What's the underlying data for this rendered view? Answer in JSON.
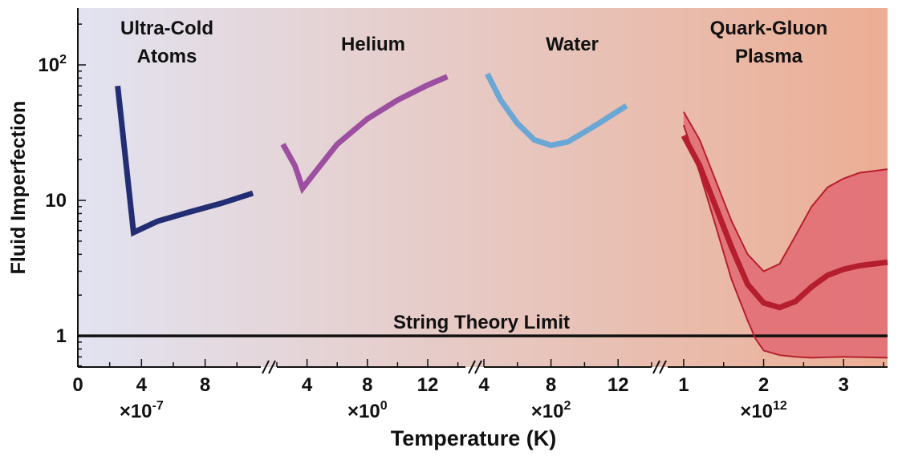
{
  "chart_data": {
    "type": "line",
    "xlabel": "Temperature (K)",
    "ylabel": "Fluid Imperfection",
    "y_scale": "log",
    "y_ticks": [
      {
        "value": 1,
        "label": "1",
        "sup": ""
      },
      {
        "value": 10,
        "label": "10",
        "sup": ""
      },
      {
        "value": 100,
        "label": "10",
        "sup": "2"
      }
    ],
    "limit": {
      "label": "String Theory Limit",
      "value": 1
    },
    "colors": {
      "bg_left": "#e2e3f1",
      "bg_right": "#ecae94",
      "atoms": "#232d73",
      "helium": "#9c4fa0",
      "water": "#6aa7d5",
      "qgp_line": "#b51f2d",
      "qgp_band": "#e26a73",
      "limit": "#111111"
    },
    "segments": [
      {
        "name": "Ultra-Cold Atoms",
        "title_lines": [
          "Ultra-Cold",
          "Atoms"
        ],
        "xlim": [
          0,
          11.5
        ],
        "ticks": [
          "0",
          "4",
          "8"
        ],
        "tick_values": [
          0,
          4,
          8
        ],
        "multiplier_base": "×10",
        "multiplier_exp": "-7",
        "curve": {
          "x": [
            2.5,
            3.5,
            5,
            7,
            9,
            11
          ],
          "y": [
            70,
            5.8,
            7.0,
            8.2,
            9.5,
            11.3
          ]
        }
      },
      {
        "name": "Helium",
        "title_lines": [
          "Helium"
        ],
        "xlim": [
          2,
          14.5
        ],
        "ticks": [
          "4",
          "8",
          "12"
        ],
        "tick_values": [
          4,
          8,
          12
        ],
        "multiplier_base": "×10",
        "multiplier_exp": "0",
        "curve": {
          "x": [
            2.4,
            3.2,
            3.7,
            4.5,
            6,
            8,
            10,
            12,
            13.3
          ],
          "y": [
            26,
            18,
            12.3,
            16,
            26,
            40,
            55,
            71,
            82
          ]
        }
      },
      {
        "name": "Water",
        "title_lines": [
          "Water"
        ],
        "xlim": [
          4,
          14
        ],
        "ticks": [
          "4",
          "8",
          "12"
        ],
        "tick_values": [
          4,
          8,
          12
        ],
        "multiplier_base": "×10",
        "multiplier_exp": "2",
        "curve": {
          "x": [
            4.2,
            5,
            6,
            7,
            8,
            9,
            10,
            11,
            12.5
          ],
          "y": [
            86,
            55,
            37,
            28,
            25.5,
            27,
            32,
            38,
            50
          ]
        }
      },
      {
        "name": "Quark-Gluon Plasma",
        "title_lines": [
          "Quark-Gluon",
          "Plasma"
        ],
        "xlim": [
          0.8,
          3.55
        ],
        "ticks": [
          "1",
          "2",
          "3"
        ],
        "tick_values": [
          1,
          2,
          3
        ],
        "multiplier_base": "×10",
        "multiplier_exp": "12",
        "central": {
          "x": [
            1.0,
            1.2,
            1.4,
            1.6,
            1.8,
            2.0,
            2.2,
            2.4,
            2.6,
            2.8,
            3.0,
            3.2,
            3.55
          ],
          "y": [
            30,
            18,
            9,
            4.5,
            2.4,
            1.75,
            1.62,
            1.8,
            2.3,
            2.8,
            3.1,
            3.3,
            3.5
          ]
        },
        "upper": {
          "x": [
            1.0,
            1.2,
            1.4,
            1.6,
            1.8,
            2.0,
            2.2,
            2.4,
            2.6,
            2.8,
            3.0,
            3.2,
            3.55
          ],
          "y": [
            45,
            28,
            14,
            7,
            4,
            3.0,
            3.4,
            5.5,
            9,
            12.5,
            14.5,
            16,
            17
          ]
        },
        "lower": {
          "x": [
            1.0,
            1.2,
            1.4,
            1.6,
            1.8,
            1.9,
            2.0,
            2.2,
            2.4,
            2.6,
            3.0,
            3.55
          ],
          "y": [
            36,
            16,
            6.5,
            2.6,
            1.3,
            0.95,
            0.78,
            0.72,
            0.7,
            0.69,
            0.7,
            0.69
          ]
        }
      }
    ]
  }
}
